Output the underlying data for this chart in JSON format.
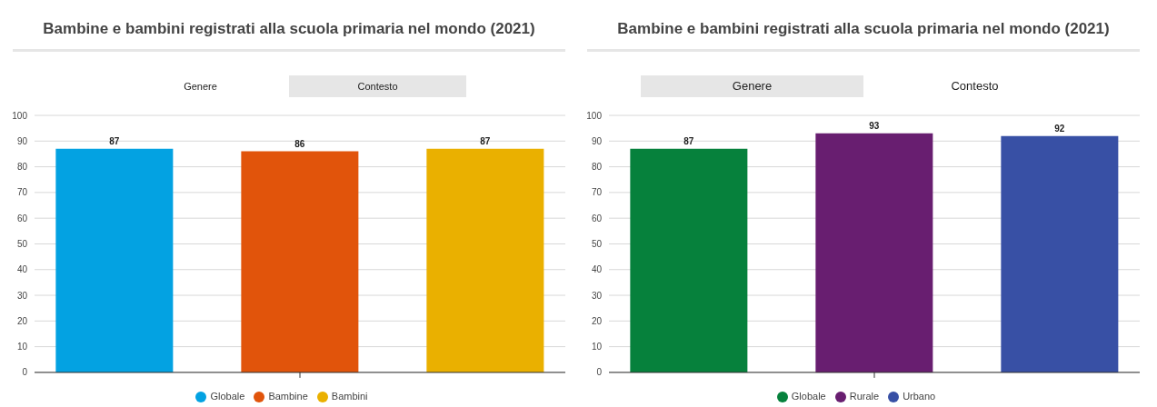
{
  "chart_data": [
    {
      "type": "bar",
      "title": "Bambine e bambini registrati alla scuola primaria nel mondo (2021)",
      "annotations": [
        "Genere",
        "Contesto"
      ],
      "categories": [
        null
      ],
      "series": [
        {
          "name": "Globale",
          "color": "#03a2e2",
          "values": [
            87
          ]
        },
        {
          "name": "Bambine",
          "color": "#e1540b",
          "values": [
            86
          ]
        },
        {
          "name": "Bambini",
          "color": "#eab000",
          "values": [
            87
          ]
        }
      ],
      "ylim": [
        0,
        100
      ],
      "yticks": [
        0,
        10,
        20,
        30,
        40,
        50,
        60,
        70,
        80,
        90,
        100
      ],
      "grid": "y",
      "legend": "bottom",
      "data_labels": true
    },
    {
      "type": "bar",
      "title": "Bambine e bambini registrati alla scuola primaria nel mondo (2021)",
      "annotations": [
        "Genere",
        "Contesto"
      ],
      "categories": [
        null
      ],
      "series": [
        {
          "name": "Globale",
          "color": "#06813c",
          "values": [
            87
          ]
        },
        {
          "name": "Rurale",
          "color": "#681e70",
          "values": [
            93
          ]
        },
        {
          "name": "Urbano",
          "color": "#3850a5",
          "values": [
            92
          ]
        }
      ],
      "ylim": [
        0,
        100
      ],
      "yticks": [
        0,
        10,
        20,
        30,
        40,
        50,
        60,
        70,
        80,
        90,
        100
      ],
      "grid": "y",
      "legend": "bottom",
      "data_labels": true
    }
  ]
}
